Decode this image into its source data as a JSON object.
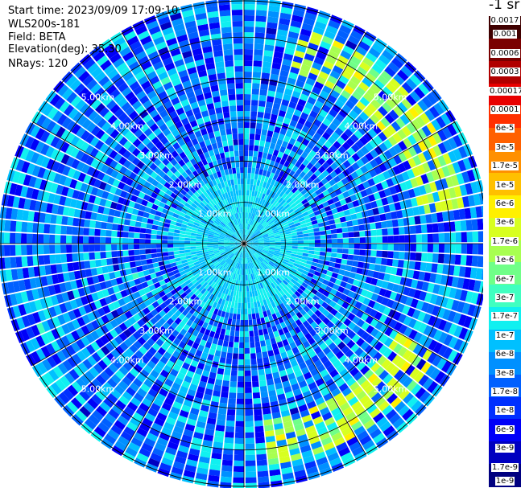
{
  "header": {
    "start_time": "Start time: 2023/09/09 17:09:10",
    "instrument": "WLS200s-181",
    "field": "Field: BETA",
    "elevation": "Elevation(deg): 35.30",
    "nrays": "NRays: 120"
  },
  "colorbar": {
    "title": "-1 sr",
    "colors": [
      "#3f0000",
      "#7a0000",
      "#b00000",
      "#e80000",
      "#ff3000",
      "#ff6000",
      "#ff9000",
      "#ffc000",
      "#fff000",
      "#d8ff20",
      "#a8ff50",
      "#70ff88",
      "#40ffc0",
      "#10f0f0",
      "#00c0ff",
      "#0090ff",
      "#0060ff",
      "#0030ff",
      "#0000f8",
      "#0000c0",
      "#000080"
    ],
    "labels": [
      "0.0017",
      "0.001",
      "0.0006",
      "0.0003",
      "0.00017",
      "0.0001",
      "6e-5",
      "3e-5",
      "1.7e-5",
      "1e-5",
      "6e-6",
      "3e-6",
      "1.7e-6",
      "1e-6",
      "6e-7",
      "3e-7",
      "1.7e-7",
      "1e-7",
      "6e-8",
      "3e-8",
      "1.7e-8",
      "1e-8",
      "6e-9",
      "3e-9",
      "1.7e-9",
      "1e-9"
    ]
  },
  "chart_data": {
    "type": "heatmap",
    "projection": "polar-ppi",
    "field": "BETA",
    "nrays": 120,
    "range_unit": "km",
    "range_max_km": 5.9,
    "range_rings_km": [
      1,
      2,
      3,
      4,
      5
    ],
    "range_ring_labels": [
      "1.00km",
      "2.00km",
      "3.00km",
      "4.00km",
      "5.00km"
    ],
    "color_scale": "log",
    "value_range": [
      1e-09,
      0.0017
    ],
    "typical_value": 3e-08,
    "enhanced_band": {
      "range_km": [
        4.3,
        5.3
      ],
      "value": 1.7e-06,
      "note": "visible as green/yellow arcs in NE and SE sectors"
    },
    "near_field_value": 1e-07,
    "gridlines": "on",
    "legend_placement": "right"
  }
}
